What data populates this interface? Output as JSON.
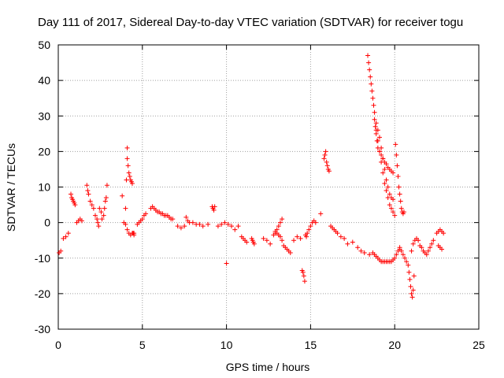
{
  "chart_data": {
    "type": "scatter",
    "title": "Day 111 of 2017, Sidereal Day-to-day VTEC variation (SDTVAR) for receiver togu",
    "xlabel": "GPS time / hours",
    "ylabel": "SDTVAR / TECUs",
    "xlim": [
      0,
      25
    ],
    "ylim": [
      -30,
      50
    ],
    "xticks": [
      0,
      5,
      10,
      15,
      20,
      25
    ],
    "yticks": [
      -30,
      -20,
      -10,
      0,
      10,
      20,
      30,
      40,
      50
    ],
    "grid": true,
    "marker": "+",
    "color": "#ff0000",
    "series": [
      {
        "name": "SDTVAR",
        "x": [
          0.05,
          0.15,
          0.3,
          0.45,
          0.6,
          0.75,
          0.8,
          0.85,
          0.9,
          0.95,
          1.0,
          1.1,
          1.2,
          1.3,
          1.4,
          1.7,
          1.75,
          1.8,
          1.9,
          2.0,
          2.1,
          2.2,
          2.3,
          2.35,
          2.4,
          2.45,
          2.55,
          2.6,
          2.7,
          2.75,
          2.8,
          2.85,
          2.9,
          3.8,
          3.9,
          4.0,
          4.0,
          4.05,
          4.1,
          4.1,
          4.15,
          4.2,
          4.25,
          4.3,
          4.35,
          4.4,
          4.45,
          4.5,
          4.1,
          4.2,
          4.3,
          4.4,
          4.5,
          4.7,
          4.8,
          4.9,
          5.0,
          5.1,
          5.2,
          5.5,
          5.6,
          5.7,
          5.8,
          5.9,
          6.0,
          6.1,
          6.2,
          6.3,
          6.4,
          6.5,
          6.6,
          6.7,
          6.8,
          7.1,
          7.3,
          7.5,
          7.6,
          7.7,
          7.8,
          8.0,
          8.2,
          8.4,
          8.6,
          8.9,
          9.15,
          9.2,
          9.25,
          9.3,
          9.5,
          9.7,
          9.9,
          10.0,
          10.1,
          10.3,
          10.5,
          10.7,
          10.9,
          11.0,
          11.1,
          11.2,
          11.5,
          11.55,
          11.6,
          11.65,
          12.2,
          12.4,
          12.6,
          12.8,
          12.9,
          13.0,
          13.1,
          13.2,
          13.3,
          12.9,
          13.0,
          13.1,
          13.2,
          13.3,
          13.4,
          13.5,
          13.6,
          13.7,
          13.8,
          14.0,
          14.2,
          14.4,
          14.5,
          14.55,
          14.6,
          14.65,
          14.7,
          14.75,
          14.8,
          14.9,
          15.0,
          15.1,
          15.2,
          15.3,
          15.6,
          15.8,
          15.85,
          15.9,
          15.95,
          16.0,
          16.05,
          16.1,
          16.2,
          16.3,
          16.4,
          16.5,
          16.6,
          16.8,
          17.0,
          17.2,
          17.5,
          17.8,
          18.0,
          18.2,
          18.5,
          18.4,
          18.45,
          18.5,
          18.55,
          18.6,
          18.65,
          18.7,
          18.75,
          18.8,
          18.8,
          18.85,
          18.9,
          18.95,
          19.0,
          19.1,
          19.2,
          19.3,
          19.4,
          19.5,
          19.6,
          19.7,
          19.8,
          19.9,
          18.9,
          19.0,
          19.1,
          19.2,
          19.3,
          19.4,
          19.5,
          19.6,
          19.7,
          19.8,
          19.9,
          18.9,
          19.0,
          19.1,
          19.2,
          19.3,
          19.4,
          19.5,
          19.6,
          19.7,
          19.8,
          19.9,
          20.0,
          18.7,
          18.8,
          18.9,
          19.0,
          19.1,
          19.2,
          19.3,
          19.4,
          19.5,
          19.6,
          19.7,
          19.8,
          19.9,
          20.0,
          20.1,
          20.2,
          20.3,
          20.05,
          20.1,
          20.15,
          20.2,
          20.25,
          20.3,
          20.35,
          20.4,
          20.45,
          20.5,
          20.55,
          20.3,
          20.4,
          20.5,
          20.6,
          20.7,
          20.8,
          20.85,
          20.9,
          20.95,
          21.0,
          21.05,
          21.1,
          21.15,
          21.0,
          21.1,
          21.2,
          21.3,
          21.4,
          21.5,
          21.6,
          21.7,
          21.8,
          21.9,
          22.0,
          22.1,
          22.2,
          22.3,
          22.5,
          22.6,
          22.7,
          22.8,
          22.9,
          22.7,
          22.8,
          22.6
        ],
        "y": [
          -8.5,
          -8,
          -4.5,
          -4,
          -3,
          8,
          7,
          6.5,
          6,
          5.5,
          5,
          0,
          0.5,
          1,
          0.5,
          10.5,
          9,
          8,
          6,
          5,
          4,
          2,
          1,
          0,
          -1,
          4,
          3,
          1,
          2,
          4,
          6,
          7,
          10.5,
          7.5,
          0,
          -0.5,
          4,
          12,
          18,
          21,
          16,
          14,
          13,
          12,
          11.5,
          11,
          -3,
          -3.5,
          -2,
          -3,
          -3.5,
          -3,
          -3,
          -0.5,
          0,
          0.5,
          1,
          2,
          2.5,
          4,
          4.5,
          4,
          3.5,
          3,
          3,
          2.5,
          2.5,
          2,
          2,
          2,
          1.5,
          1,
          1,
          -1,
          -1.5,
          -1,
          1.5,
          0.5,
          0,
          0,
          -0.5,
          -0.5,
          -1,
          -0.5,
          4.5,
          4,
          3.5,
          4.5,
          -1,
          -0.5,
          0,
          -11.5,
          -0.5,
          -1,
          -2,
          -1,
          -4,
          -4.5,
          -5,
          -5.5,
          -4.5,
          -5,
          -5.5,
          -6,
          -4.5,
          -5,
          -6,
          -3.5,
          -3,
          -2,
          -1,
          0,
          1,
          -2.5,
          -3,
          -3.5,
          -4,
          -5,
          -6.5,
          -7,
          -7.5,
          -8,
          -8.5,
          -5,
          -4,
          -4.5,
          -13.5,
          -14,
          -15,
          -16.5,
          -3.5,
          -4,
          -3,
          -2,
          -1,
          0,
          0.5,
          0,
          2.5,
          18,
          19,
          20,
          17,
          16,
          15,
          14.5,
          -1,
          -1.5,
          -2,
          -2.5,
          -3,
          -4,
          -4.5,
          -6,
          -5.5,
          -7,
          -8,
          -8.5,
          -9,
          47,
          45,
          43,
          41,
          39,
          37,
          35,
          33,
          31,
          29,
          27,
          25,
          23,
          21,
          20,
          19,
          18,
          17,
          16.5,
          15.5,
          15,
          14.5,
          14,
          28,
          26,
          24,
          21,
          18,
          15,
          12,
          10,
          8,
          7,
          6.5,
          26,
          23,
          20,
          17,
          14,
          11,
          9,
          7,
          5,
          4,
          3,
          2,
          -8.5,
          -9,
          -9.5,
          -10,
          -10.5,
          -11,
          -11,
          -11,
          -11,
          -11,
          -11,
          -11,
          -10.5,
          -10,
          -9,
          -8,
          -7.5,
          22,
          19,
          16,
          13,
          10,
          8,
          6,
          4,
          3,
          2.5,
          3,
          -7,
          -8,
          -9,
          -10,
          -11,
          -12,
          -14,
          -16,
          -18,
          -20,
          -21,
          -19,
          -15,
          -8,
          -6,
          -5,
          -4.5,
          -5,
          -6.5,
          -7,
          -8,
          -8.5,
          -9,
          -8,
          -7,
          -6,
          -5,
          -3,
          -2.5,
          -2,
          -2.5,
          -3,
          -7,
          -7.5,
          -6.5
        ]
      }
    ]
  }
}
